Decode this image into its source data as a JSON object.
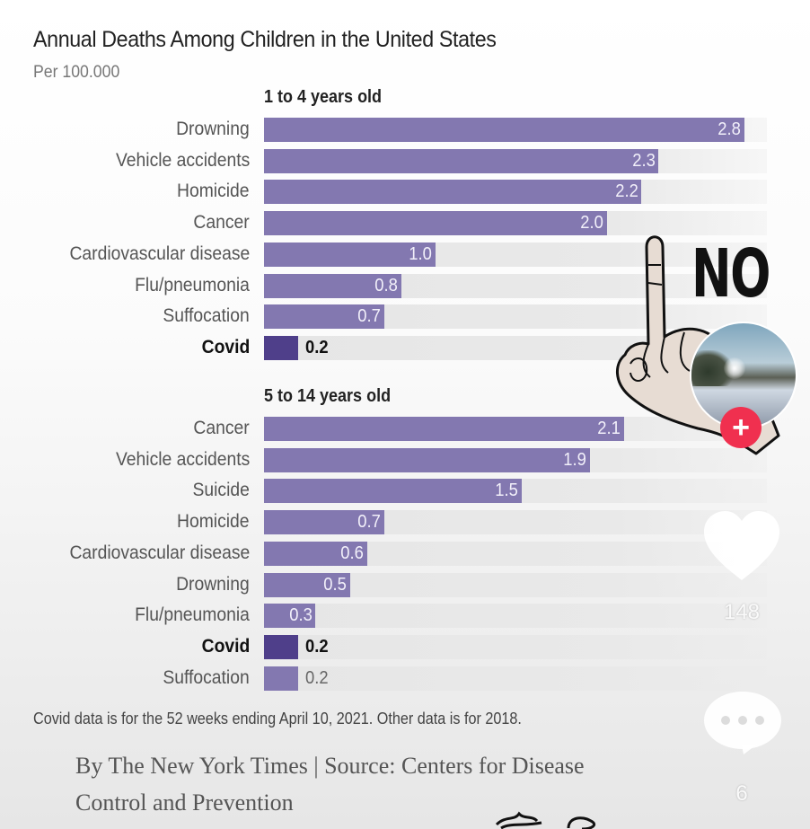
{
  "chart_data": {
    "type": "bar",
    "orientation": "horizontal",
    "title": "Annual Deaths Among Children in the United States",
    "subtitle": "Per 100.000",
    "xlim": [
      0,
      2.8
    ],
    "groups": [
      {
        "title": "1 to 4 years old",
        "categories": [
          "Drowning",
          "Vehicle accidents",
          "Homicide",
          "Cancer",
          "Cardiovascular disease",
          "Flu/pneumonia",
          "Suffocation",
          "Covid"
        ],
        "values": [
          2.8,
          2.3,
          2.2,
          2.0,
          1.0,
          0.8,
          0.7,
          0.2
        ],
        "labels": [
          "2.8",
          "2.3",
          "2.2",
          "2.0",
          "1.0",
          "0.8",
          "0.7",
          "0.2"
        ],
        "highlight": "Covid"
      },
      {
        "title": "5 to 14 years old",
        "categories": [
          "Cancer",
          "Vehicle accidents",
          "Suicide",
          "Homicide",
          "Cardiovascular disease",
          "Drowning",
          "Flu/pneumonia",
          "Covid",
          "Suffocation"
        ],
        "values": [
          2.1,
          1.9,
          1.5,
          0.7,
          0.6,
          0.5,
          0.3,
          0.2,
          0.2
        ],
        "labels": [
          "2.1",
          "1.9",
          "1.5",
          "0.7",
          "0.6",
          "0.5",
          "0.3",
          "0.2",
          "0.2"
        ],
        "highlight": "Covid"
      }
    ],
    "colors": {
      "bar": "#8378b0",
      "highlight_bar": "#4f3f8a",
      "track": "#e6e6e6"
    },
    "note": "Covid data is for the 52 weeks ending April 10, 2021. Other data is for 2018.",
    "credit_line1": "By The New York Times | Source: Centers for Disease",
    "credit_line2": "Control and Prevention"
  },
  "overlay": {
    "sticker_text": "NO",
    "sticker_icon": "hand-index-finger-up-icon",
    "avatar_icon": "profile-avatar-winter-landscape",
    "follow_label": "+",
    "follow_color": "#f0304f",
    "like_icon": "heart-icon",
    "like_count": "148",
    "comment_icon": "comment-bubble-icon",
    "comment_count": "6"
  }
}
